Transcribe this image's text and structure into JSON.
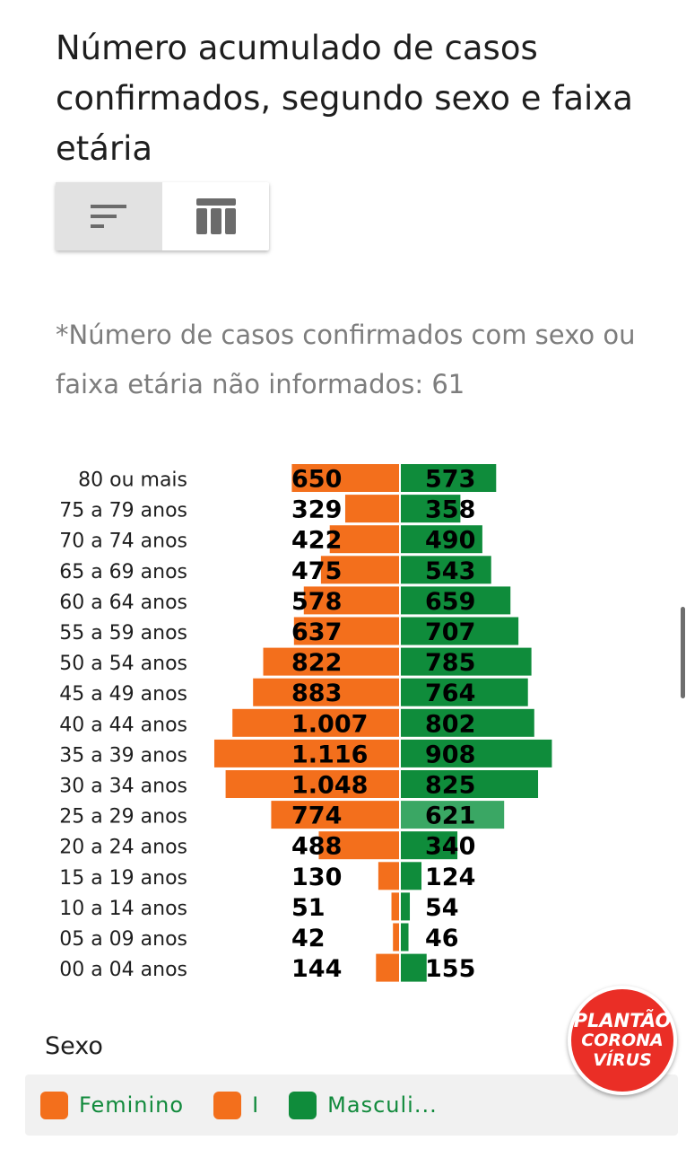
{
  "title": "Número acumulado de casos confirmados, segundo sexo e faixa etária",
  "view_toggle": {
    "chart_icon": "bar-chart-icon",
    "table_icon": "table-icon",
    "active": "chart"
  },
  "note": "*Número de casos confirmados com sexo ou faixa etária não informados: 61",
  "colors": {
    "feminino": "#f36f1c",
    "masculino": "#0f8c3b",
    "masculino_highlight": "#3aa764",
    "label": "#000000"
  },
  "chart_data": {
    "type": "bar",
    "orientation": "horizontal-population-pyramid",
    "categories": [
      "80 ou mais",
      "75 a 79 anos",
      "70 a 74 anos",
      "65 a 69 anos",
      "60 a 64 anos",
      "55 a 59 anos",
      "50 a 54 anos",
      "45 a 49 anos",
      "40 a 44 anos",
      "35 a 39 anos",
      "30 a 34 anos",
      "25 a 29 anos",
      "20 a 24 anos",
      "15 a 19 anos",
      "10 a 14 anos",
      "05 a 09 anos",
      "00 a 04 anos"
    ],
    "series": [
      {
        "name": "Feminino",
        "values": [
          650,
          329,
          422,
          475,
          578,
          637,
          822,
          883,
          1007,
          1116,
          1048,
          774,
          488,
          130,
          51,
          42,
          144
        ],
        "labels": [
          "650",
          "329",
          "422",
          "475",
          "578",
          "637",
          "822",
          "883",
          "1.007",
          "1.116",
          "1.048",
          "774",
          "488",
          "130",
          "51",
          "42",
          "144"
        ]
      },
      {
        "name": "Masculino",
        "values": [
          573,
          358,
          490,
          543,
          659,
          707,
          785,
          764,
          802,
          908,
          825,
          621,
          340,
          124,
          54,
          46,
          155
        ],
        "labels": [
          "573",
          "358",
          "490",
          "543",
          "659",
          "707",
          "785",
          "764",
          "802",
          "908",
          "825",
          "621",
          "340",
          "124",
          "54",
          "46",
          "155"
        ]
      }
    ],
    "highlighted_category": "25 a 29 anos"
  },
  "legend": {
    "title": "Sexo",
    "items": [
      {
        "label": "Feminino",
        "color": "#f36f1c"
      },
      {
        "label": "I",
        "color": "#f36f1c"
      },
      {
        "label": "Masculi...",
        "color": "#0f8c3b"
      }
    ]
  },
  "badge": {
    "line1": "PLANTÃO",
    "line2": "CORONA",
    "line3": "VÍRUS"
  }
}
